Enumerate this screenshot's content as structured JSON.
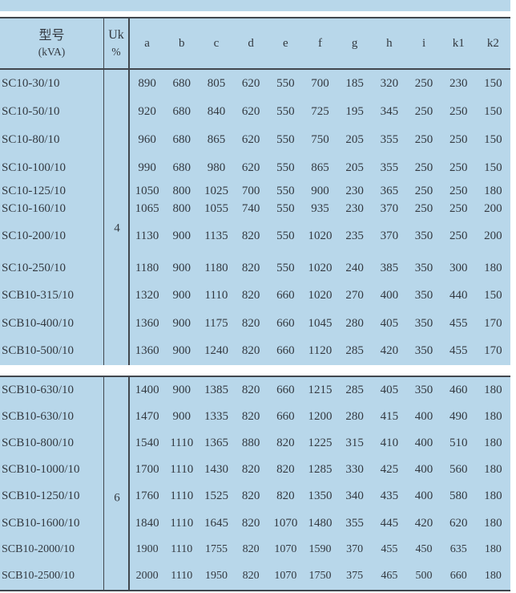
{
  "palette": {
    "table_background": "#b8d7ea",
    "border_color": "#41474e",
    "text_color": "#333940"
  },
  "header": {
    "model_label_line1": "型号",
    "model_label_line2": "(kVA)",
    "uk_label_line1": "Uk",
    "uk_label_line2": "%",
    "dimension_columns": [
      "a",
      "b",
      "c",
      "d",
      "e",
      "f",
      "g",
      "h",
      "i",
      "k1",
      "k2"
    ]
  },
  "sections": [
    {
      "uk_percent": "4",
      "rows": [
        {
          "model": "SC10-30/10",
          "values": [
            "890",
            "680",
            "805",
            "620",
            "550",
            "700",
            "185",
            "320",
            "250",
            "230",
            "150"
          ]
        },
        {
          "model": "SC10-50/10",
          "values": [
            "920",
            "680",
            "840",
            "620",
            "550",
            "725",
            "195",
            "345",
            "250",
            "250",
            "150"
          ]
        },
        {
          "model": "SC10-80/10",
          "values": [
            "960",
            "680",
            "865",
            "620",
            "550",
            "750",
            "205",
            "355",
            "250",
            "250",
            "150"
          ]
        },
        {
          "model": "SC10-100/10",
          "values": [
            "990",
            "680",
            "980",
            "620",
            "550",
            "865",
            "205",
            "355",
            "250",
            "250",
            "150"
          ]
        },
        {
          "model": "SC10-125/10",
          "values": [
            "1050",
            "800",
            "1025",
            "700",
            "550",
            "900",
            "230",
            "365",
            "250",
            "250",
            "180"
          ]
        },
        {
          "model": "SC10-160/10",
          "values": [
            "1065",
            "800",
            "1055",
            "740",
            "550",
            "935",
            "230",
            "370",
            "250",
            "250",
            "200"
          ]
        },
        {
          "model": "SC10-200/10",
          "values": [
            "1130",
            "900",
            "1135",
            "820",
            "550",
            "1020",
            "235",
            "370",
            "350",
            "250",
            "200"
          ]
        },
        {
          "model": "SC10-250/10",
          "values": [
            "1180",
            "900",
            "1180",
            "820",
            "550",
            "1020",
            "240",
            "385",
            "350",
            "300",
            "180"
          ]
        },
        {
          "model": "SCB10-315/10",
          "values": [
            "1320",
            "900",
            "1110",
            "820",
            "660",
            "1020",
            "270",
            "400",
            "350",
            "440",
            "150"
          ]
        },
        {
          "model": "SCB10-400/10",
          "values": [
            "1360",
            "900",
            "1175",
            "820",
            "660",
            "1045",
            "280",
            "405",
            "350",
            "455",
            "170"
          ]
        },
        {
          "model": "SCB10-500/10",
          "values": [
            "1360",
            "900",
            "1240",
            "820",
            "660",
            "1120",
            "285",
            "420",
            "350",
            "455",
            "170"
          ]
        }
      ]
    },
    {
      "uk_percent": "6",
      "rows": [
        {
          "model": "SCB10-630/10",
          "values": [
            "1400",
            "900",
            "1385",
            "820",
            "660",
            "1215",
            "285",
            "405",
            "350",
            "460",
            "180"
          ]
        },
        {
          "model": "SCB10-630/10",
          "values": [
            "1470",
            "900",
            "1335",
            "820",
            "660",
            "1200",
            "280",
            "415",
            "400",
            "490",
            "180"
          ]
        },
        {
          "model": "SCB10-800/10",
          "values": [
            "1540",
            "1110",
            "1365",
            "880",
            "820",
            "1225",
            "315",
            "410",
            "400",
            "510",
            "180"
          ]
        },
        {
          "model": "SCB10-1000/10",
          "values": [
            "1700",
            "1110",
            "1430",
            "820",
            "820",
            "1285",
            "330",
            "425",
            "400",
            "560",
            "180"
          ]
        },
        {
          "model": "SCB10-1250/10",
          "values": [
            "1760",
            "1110",
            "1525",
            "820",
            "820",
            "1350",
            "340",
            "435",
            "400",
            "580",
            "180"
          ]
        },
        {
          "model": "SCB10-1600/10",
          "values": [
            "1840",
            "1110",
            "1645",
            "820",
            "1070",
            "1480",
            "355",
            "445",
            "420",
            "620",
            "180"
          ]
        },
        {
          "model": "SCB10-2000/10",
          "values": [
            "1900",
            "1110",
            "1755",
            "820",
            "1070",
            "1590",
            "370",
            "455",
            "450",
            "635",
            "180"
          ]
        },
        {
          "model": "SCB10-2500/10",
          "values": [
            "2000",
            "1110",
            "1950",
            "820",
            "1070",
            "1750",
            "375",
            "465",
            "500",
            "660",
            "180"
          ]
        }
      ]
    }
  ]
}
